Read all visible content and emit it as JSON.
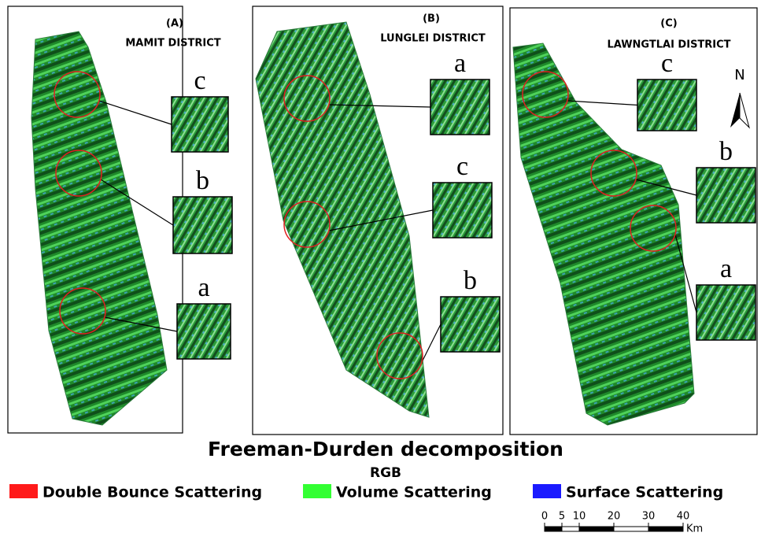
{
  "panels": [
    {
      "label": "(A)",
      "district": "MAMIT DISTRICT",
      "insets": [
        "c",
        "b",
        "a"
      ]
    },
    {
      "label": "(B)",
      "district": "LUNGLEI DISTRICT",
      "insets": [
        "a",
        "c",
        "b"
      ]
    },
    {
      "label": "(C)",
      "district": "LAWNGTLAI DISTRICT",
      "insets": [
        "c",
        "b",
        "a"
      ]
    }
  ],
  "north": "N",
  "title": "Freeman-Durden decomposition",
  "subtitle": "RGB",
  "legend": [
    {
      "label": "Double Bounce Scattering",
      "color": "#ff1a1a"
    },
    {
      "label": "Volume Scattering",
      "color": "#33ff33"
    },
    {
      "label": "Surface Scattering",
      "color": "#1a1aff"
    }
  ],
  "scale_bar": {
    "ticks": [
      0,
      5,
      10,
      20,
      30,
      40
    ],
    "unit": "Km"
  }
}
